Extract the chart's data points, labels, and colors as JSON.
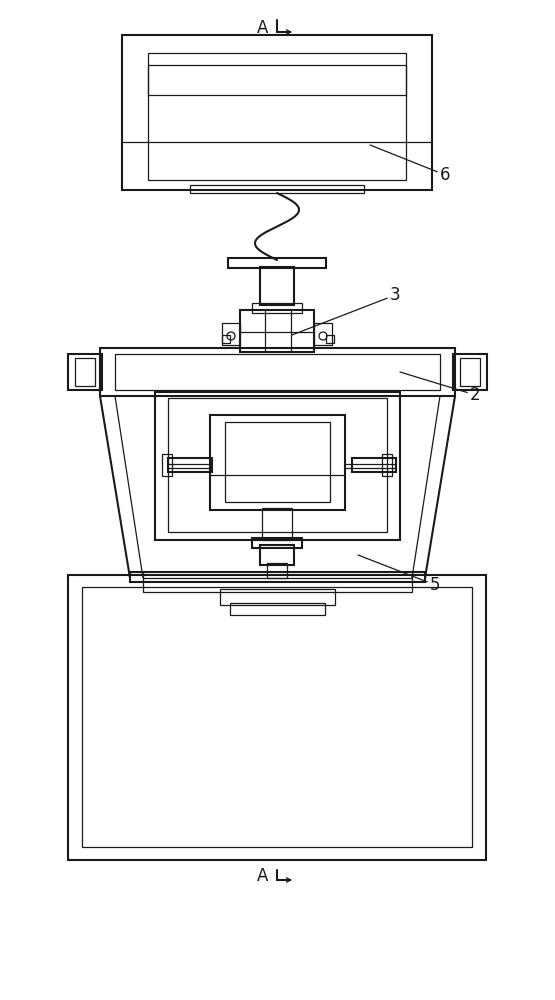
{
  "bg_color": "#ffffff",
  "line_color": "#1a1a1a",
  "lw_main": 1.5,
  "lw_thin": 0.9,
  "fig_width": 5.55,
  "fig_height": 10.0,
  "dpi": 100
}
